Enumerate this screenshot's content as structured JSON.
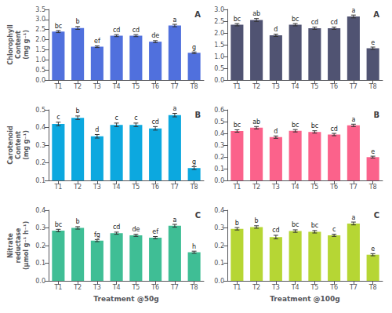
{
  "chart_data": [
    {
      "type": "bar",
      "title": "A",
      "categories": [
        "T1",
        "T2",
        "T3",
        "T4",
        "T5",
        "T6",
        "T7",
        "T8"
      ],
      "values": [
        2.4,
        2.58,
        1.65,
        2.2,
        2.2,
        1.9,
        2.7,
        1.35
      ],
      "errors": [
        0.05,
        0.07,
        0.04,
        0.05,
        0.05,
        0.05,
        0.06,
        0.04
      ],
      "annotations": [
        "bc",
        "b",
        "ef",
        "cd",
        "cd",
        "de",
        "a",
        "g"
      ],
      "ylabel": "Chlorophyll\nContent\n(mg g⁻¹)",
      "ylim": [
        0,
        3.5
      ],
      "yticks": [
        {
          "value": 0,
          "label": "0.0"
        },
        0.5,
        {
          "value": 1.0,
          "label": "1.0"
        },
        1.5,
        {
          "value": 2.0,
          "label": "2.0"
        },
        2.5,
        {
          "value": 3.0,
          "label": "3.0"
        },
        3.5
      ],
      "grid": false
    },
    {
      "type": "bar",
      "title": "A",
      "categories": [
        "T1",
        "T2",
        "T3",
        "T4",
        "T5",
        "T6",
        "T7",
        "T8"
      ],
      "values": [
        2.35,
        2.55,
        1.9,
        2.35,
        2.2,
        2.2,
        2.7,
        1.35
      ],
      "errors": [
        0.05,
        0.06,
        0.05,
        0.05,
        0.05,
        0.05,
        0.06,
        0.05
      ],
      "annotations": [
        "bc",
        "ab",
        "d",
        "bc",
        "cd",
        "cd",
        "a",
        "e"
      ],
      "ylim": [
        0,
        3.0
      ],
      "yticks": [
        {
          "value": 0,
          "label": "0.0"
        },
        0.5,
        {
          "value": 1.0,
          "label": "1.0"
        },
        1.5,
        {
          "value": 2.0,
          "label": "2.0"
        },
        2.5,
        {
          "value": 3.0,
          "label": "3.0"
        }
      ],
      "grid": false
    },
    {
      "type": "bar",
      "title": "B",
      "categories": [
        "T1",
        "T2",
        "T3",
        "T4",
        "T5",
        "T6",
        "T7",
        "T8"
      ],
      "values": [
        0.42,
        0.455,
        0.35,
        0.415,
        0.415,
        0.395,
        0.47,
        0.17
      ],
      "errors": [
        0.01,
        0.01,
        0.01,
        0.01,
        0.01,
        0.01,
        0.01,
        0.008
      ],
      "annotations": [
        "c",
        "b",
        "d",
        "c",
        "c",
        "cd",
        "a",
        "g"
      ],
      "ylabel": "Carotenoid\nContent\n(mg g⁻¹)",
      "ylim": [
        0.1,
        0.5
      ],
      "yticks": [
        0.1,
        0.2,
        0.3,
        0.4,
        0.5
      ],
      "grid": false
    },
    {
      "type": "bar",
      "title": "B",
      "categories": [
        "T1",
        "T2",
        "T3",
        "T4",
        "T5",
        "T6",
        "T7",
        "T8"
      ],
      "values": [
        0.42,
        0.448,
        0.368,
        0.422,
        0.412,
        0.39,
        0.468,
        0.198
      ],
      "errors": [
        0.01,
        0.01,
        0.01,
        0.01,
        0.01,
        0.01,
        0.01,
        0.008
      ],
      "annotations": [
        "bc",
        "ab",
        "d",
        "bc",
        "bc",
        "cd",
        "a",
        "e"
      ],
      "ylim": [
        0.0,
        0.6
      ],
      "yticks": [
        {
          "value": 0.0,
          "label": "0.0"
        },
        0.1,
        0.2,
        0.3,
        0.4,
        0.5,
        0.6
      ],
      "grid": false
    },
    {
      "type": "bar",
      "title": "C",
      "categories": [
        "T1",
        "T2",
        "T3",
        "T4",
        "T5",
        "T6",
        "T7",
        "T8"
      ],
      "values": [
        0.285,
        0.3,
        0.228,
        0.27,
        0.258,
        0.245,
        0.312,
        0.162
      ],
      "errors": [
        0.007,
        0.007,
        0.006,
        0.006,
        0.006,
        0.006,
        0.008,
        0.006
      ],
      "annotations": [
        "bc",
        "b",
        "fg",
        "cd",
        "de",
        "ef",
        "a",
        "h"
      ],
      "ylabel": "Nitrate\nreductase\n(μmol g⁻¹ h⁻¹)",
      "xlabel": "Treatment @50g",
      "ylim": [
        0,
        0.4
      ],
      "yticks": [
        {
          "value": 0,
          "label": "0.0"
        },
        0.1,
        0.2,
        0.3,
        0.4
      ],
      "grid": false
    },
    {
      "type": "bar",
      "title": "C",
      "categories": [
        "T1",
        "T2",
        "T3",
        "T4",
        "T5",
        "T6",
        "T7",
        "T8"
      ],
      "values": [
        0.295,
        0.305,
        0.248,
        0.282,
        0.278,
        0.258,
        0.325,
        0.148
      ],
      "errors": [
        0.007,
        0.007,
        0.01,
        0.007,
        0.007,
        0.006,
        0.008,
        0.006
      ],
      "annotations": [
        "b",
        "b",
        "cd",
        "bc",
        "bc",
        "c",
        "a",
        "e"
      ],
      "xlabel": "Treatment @100g",
      "ylim": [
        0,
        0.4
      ],
      "yticks": [
        {
          "value": 0,
          "label": "0.0"
        },
        0.1,
        0.2,
        0.3,
        0.4
      ],
      "grid": false
    }
  ]
}
